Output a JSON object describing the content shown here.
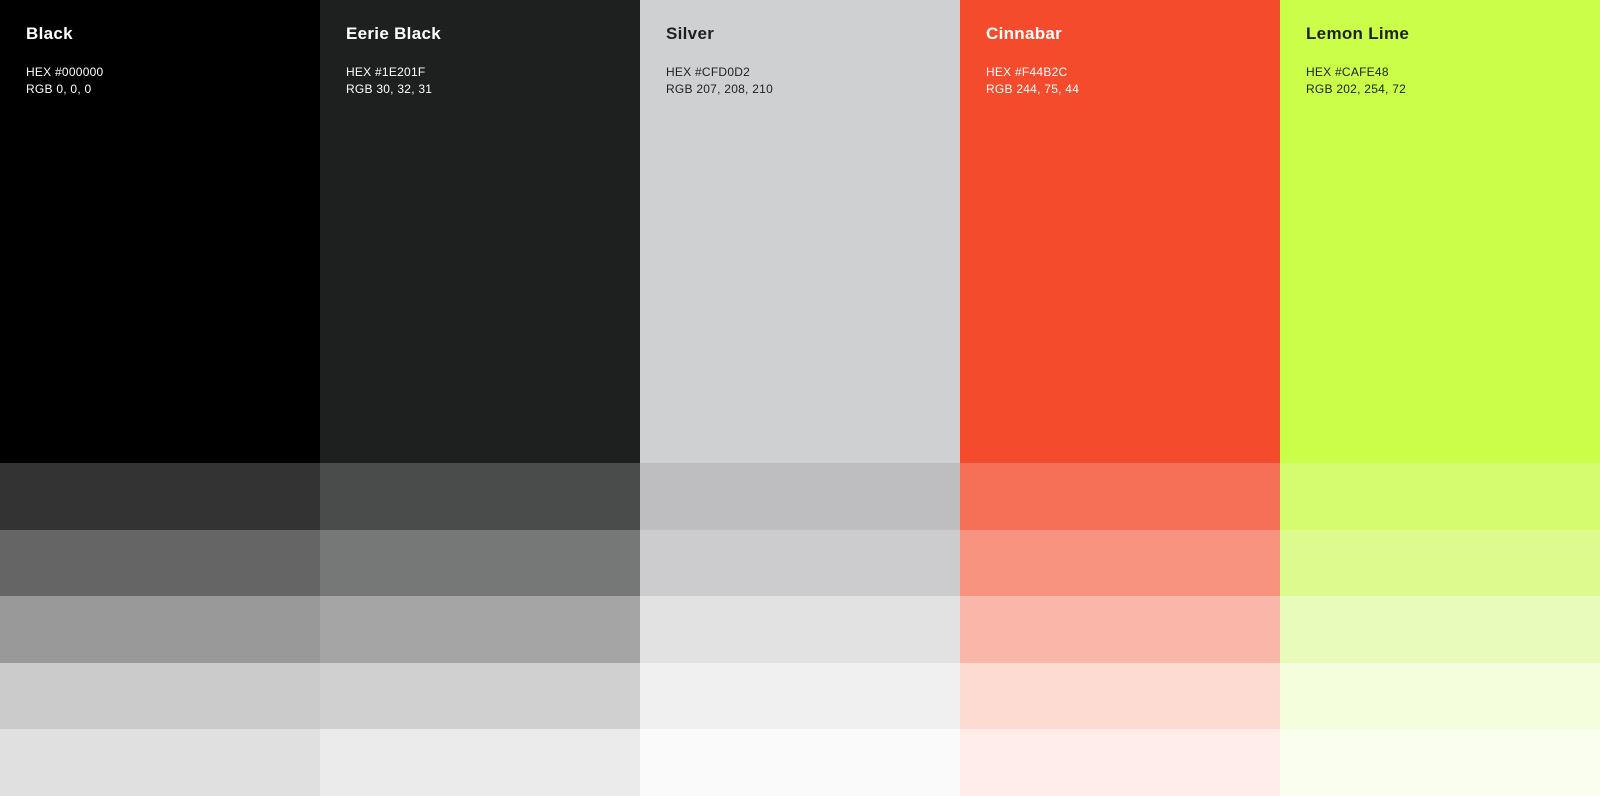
{
  "palette": {
    "columns": [
      {
        "name": "Black",
        "hex_label": "HEX #000000",
        "rgb_label": "RGB 0, 0, 0",
        "base_color": "#000000",
        "text_color": "#FFFFFF",
        "tint_rows": [
          "#333333",
          "#656565",
          "#999999",
          "#CBCBCB",
          "#E0E0E0"
        ]
      },
      {
        "name": "Eerie Black",
        "hex_label": "HEX #1E201F",
        "rgb_label": "RGB 30, 32, 31",
        "base_color": "#1E201F",
        "text_color": "#FFFFFF",
        "tint_rows": [
          "#4A4C4B",
          "#767777",
          "#A4A5A4",
          "#D0D0D0",
          "#EBEBEB"
        ]
      },
      {
        "name": "Silver",
        "hex_label": "HEX #CFD0D2",
        "rgb_label": "RGB 207, 208, 210",
        "base_color": "#CFD0D2",
        "text_color": "#1E201F",
        "tint_rows": [
          "#BEBEC0",
          "#CCCCCE",
          "#E2E2E3",
          "#F0F0F1",
          "#FAFAFB"
        ]
      },
      {
        "name": "Cinnabar",
        "hex_label": "HEX #F44B2C",
        "rgb_label": "RGB 244, 75, 44",
        "base_color": "#F44B2C",
        "text_color": "#FFFFFF",
        "tint_rows": [
          "#F66F57",
          "#F89380",
          "#FAB7A9",
          "#FDDBD3",
          "#FEEDE9"
        ]
      },
      {
        "name": "Lemon Lime",
        "hex_label": "HEX #CAFE48",
        "rgb_label": "RGB 202, 254, 72",
        "base_color": "#CAFE48",
        "text_color": "#1E201F",
        "tint_rows": [
          "#D5FC6E",
          "#DDFA8F",
          "#E9FBBA",
          "#F4FDDC",
          "#FAFEEE"
        ]
      }
    ]
  }
}
